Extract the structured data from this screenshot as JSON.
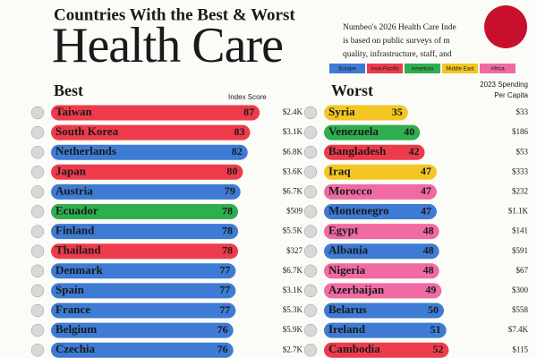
{
  "header": {
    "title": "Countries With the Best & Worst",
    "big_title": "Health Care",
    "note_lines": [
      "Numbeo's 2026 Health Care Inde",
      "is based on public surveys of m",
      "quality, infrastructure, staff, and"
    ],
    "legend": [
      {
        "name": "Europe",
        "color": "#3d7bd4"
      },
      {
        "name": "Asia-Pacific",
        "color": "#ee3b4b"
      },
      {
        "name": "Americas",
        "color": "#2fae4f"
      },
      {
        "name": "Middle East",
        "color": "#f3c623"
      },
      {
        "name": "Africa",
        "color": "#f06aa3"
      }
    ],
    "score_label": "Index Score",
    "spending_label": [
      "2023 Spending",
      "Per Capita"
    ]
  },
  "chart_data": [
    {
      "type": "bar",
      "title": "Best",
      "categories": [
        "Taiwan",
        "South Korea",
        "Netherlands",
        "Japan",
        "Austria",
        "Ecuador",
        "Finland",
        "Thailand",
        "Denmark",
        "Spain",
        "France",
        "Belgium",
        "Czechia"
      ],
      "values": [
        87,
        83,
        82,
        80,
        79,
        78,
        78,
        78,
        77,
        77,
        77,
        76,
        76
      ],
      "colors": [
        "#ee3b4b",
        "#ee3b4b",
        "#3d7bd4",
        "#ee3b4b",
        "#3d7bd4",
        "#2fae4f",
        "#3d7bd4",
        "#ee3b4b",
        "#3d7bd4",
        "#3d7bd4",
        "#3d7bd4",
        "#3d7bd4",
        "#3d7bd4"
      ],
      "spending": [
        "$2.4K",
        "$3.1K",
        "$6.8K",
        "$3.6K",
        "$6.7K",
        "$509",
        "$5.5K",
        "$327",
        "$6.7K",
        "$3.1K",
        "$5.3K",
        "$5.9K",
        "$2.7K"
      ]
    },
    {
      "type": "bar",
      "title": "Worst",
      "categories": [
        "Syria",
        "Venezuela",
        "Bangladesh",
        "Iraq",
        "Morocco",
        "Montenegro",
        "Egypt",
        "Albania",
        "Nigeria",
        "Azerbaijan",
        "Belarus",
        "Ireland",
        "Cambodia"
      ],
      "values": [
        35,
        40,
        42,
        47,
        47,
        47,
        48,
        48,
        48,
        49,
        50,
        51,
        52
      ],
      "colors": [
        "#f3c623",
        "#2fae4f",
        "#ee3b4b",
        "#f3c623",
        "#f06aa3",
        "#3d7bd4",
        "#f06aa3",
        "#3d7bd4",
        "#f06aa3",
        "#f06aa3",
        "#3d7bd4",
        "#3d7bd4",
        "#ee3b4b"
      ],
      "spending": [
        "$33",
        "$186",
        "$53",
        "$333",
        "$232",
        "$1.1K",
        "$141",
        "$591",
        "$67",
        "$300",
        "$558",
        "$7.4K",
        "$115"
      ]
    }
  ]
}
